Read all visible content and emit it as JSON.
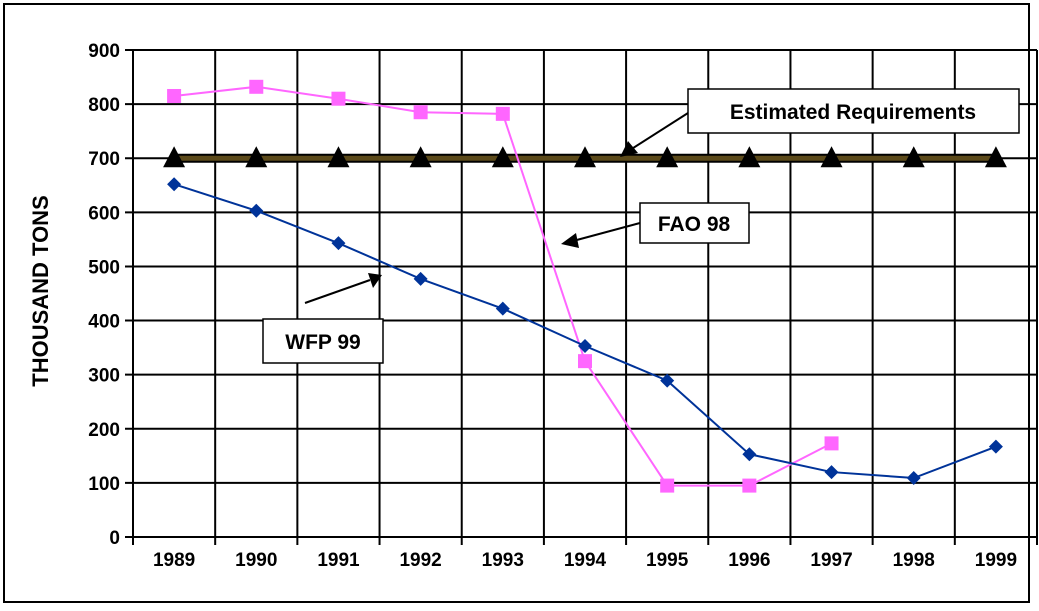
{
  "chart_data": {
    "type": "line",
    "title": "",
    "xlabel": "",
    "ylabel": "THOUSAND TONS",
    "categories": [
      "1989",
      "1990",
      "1991",
      "1992",
      "1993",
      "1994",
      "1995",
      "1996",
      "1997",
      "1998",
      "1999"
    ],
    "yticks": [
      "0",
      "100",
      "200",
      "300",
      "400",
      "500",
      "600",
      "700",
      "800",
      "900"
    ],
    "ylim": [
      0,
      900
    ],
    "grid": true,
    "series": [
      {
        "name": "Estimated Requirements",
        "color": "#5c4a1a",
        "marker": "triangle",
        "values": [
          700,
          700,
          700,
          700,
          700,
          700,
          700,
          700,
          700,
          700,
          700
        ]
      },
      {
        "name": "FAO 98",
        "color": "#ff66ff",
        "marker": "square",
        "values": [
          815,
          832,
          810,
          785,
          782,
          325,
          95,
          95,
          173,
          null,
          null
        ]
      },
      {
        "name": "WFP 99",
        "color": "#003399",
        "marker": "diamond",
        "values": [
          652,
          603,
          543,
          477,
          422,
          353,
          289,
          153,
          120,
          109,
          167
        ]
      }
    ],
    "annotations": [
      "Estimated Requirements",
      "FAO 98",
      "WFP 99"
    ]
  }
}
